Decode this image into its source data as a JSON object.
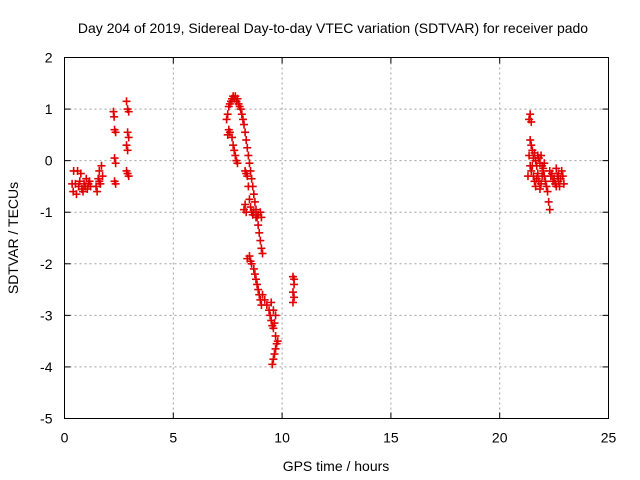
{
  "chart_data": {
    "type": "scatter",
    "title": "Day 204 of 2019, Sidereal Day-to-day VTEC variation (SDTVAR) for receiver pado",
    "xlabel": "GPS time / hours",
    "ylabel": "SDTVAR / TECUs",
    "xlim": [
      0,
      25
    ],
    "ylim": [
      -5,
      2
    ],
    "xticks": [
      "0",
      "5",
      "10",
      "15",
      "20",
      "25"
    ],
    "yticks": [
      "-5",
      "-4",
      "-3",
      "-2",
      "-1",
      "0",
      "1",
      "2"
    ],
    "grid": true,
    "marker": "+",
    "color": "#e00000",
    "series": [
      {
        "name": "SDTVAR",
        "points": [
          [
            0.35,
            -0.45
          ],
          [
            0.4,
            -0.6
          ],
          [
            0.42,
            -0.2
          ],
          [
            0.5,
            -0.45
          ],
          [
            0.55,
            -0.65
          ],
          [
            0.6,
            -0.2
          ],
          [
            0.65,
            -0.5
          ],
          [
            0.7,
            -0.4
          ],
          [
            0.75,
            -0.25
          ],
          [
            0.8,
            -0.55
          ],
          [
            0.85,
            -0.6
          ],
          [
            0.9,
            -0.45
          ],
          [
            0.95,
            -0.5
          ],
          [
            1.0,
            -0.35
          ],
          [
            1.05,
            -0.55
          ],
          [
            1.1,
            -0.45
          ],
          [
            1.15,
            -0.4
          ],
          [
            1.2,
            -0.5
          ],
          [
            1.45,
            -0.5
          ],
          [
            1.5,
            -0.6
          ],
          [
            1.55,
            -0.35
          ],
          [
            1.6,
            -0.2
          ],
          [
            1.65,
            -0.45
          ],
          [
            1.7,
            -0.1
          ],
          [
            1.75,
            -0.3
          ],
          [
            1.6,
            -0.4
          ],
          [
            2.25,
            0.95
          ],
          [
            2.3,
            0.6
          ],
          [
            2.35,
            0.55
          ],
          [
            2.28,
            0.85
          ],
          [
            2.3,
            0.05
          ],
          [
            2.35,
            -0.05
          ],
          [
            2.3,
            -0.4
          ],
          [
            2.35,
            -0.45
          ],
          [
            2.85,
            1.15
          ],
          [
            2.9,
            1.0
          ],
          [
            2.95,
            0.95
          ],
          [
            2.9,
            0.55
          ],
          [
            2.95,
            0.45
          ],
          [
            2.85,
            0.3
          ],
          [
            2.9,
            0.2
          ],
          [
            2.85,
            -0.2
          ],
          [
            2.95,
            -0.3
          ],
          [
            2.9,
            -0.25
          ],
          [
            7.45,
            0.8
          ],
          [
            7.5,
            0.9
          ],
          [
            7.55,
            1.05
          ],
          [
            7.6,
            1.1
          ],
          [
            7.65,
            1.15
          ],
          [
            7.7,
            1.2
          ],
          [
            7.75,
            1.25
          ],
          [
            7.8,
            1.2
          ],
          [
            7.85,
            1.25
          ],
          [
            7.9,
            1.15
          ],
          [
            7.95,
            1.2
          ],
          [
            8.0,
            1.1
          ],
          [
            8.05,
            1.05
          ],
          [
            8.1,
            1.0
          ],
          [
            8.15,
            0.9
          ],
          [
            8.2,
            0.8
          ],
          [
            8.25,
            0.7
          ],
          [
            8.3,
            0.55
          ],
          [
            8.35,
            0.4
          ],
          [
            8.4,
            0.25
          ],
          [
            8.45,
            0.1
          ],
          [
            8.5,
            -0.05
          ],
          [
            8.55,
            -0.2
          ],
          [
            8.6,
            -0.35
          ],
          [
            8.65,
            -0.5
          ],
          [
            8.7,
            -0.65
          ],
          [
            8.75,
            -0.8
          ],
          [
            8.8,
            -0.95
          ],
          [
            8.85,
            -1.1
          ],
          [
            8.9,
            -1.25
          ],
          [
            8.95,
            -1.4
          ],
          [
            9.0,
            -1.55
          ],
          [
            9.05,
            -1.7
          ],
          [
            9.1,
            -1.8
          ],
          [
            7.5,
            0.5
          ],
          [
            7.55,
            0.6
          ],
          [
            7.6,
            0.55
          ],
          [
            7.7,
            0.45
          ],
          [
            7.75,
            0.3
          ],
          [
            7.8,
            0.2
          ],
          [
            7.85,
            0.1
          ],
          [
            7.9,
            0.0
          ],
          [
            7.95,
            -0.05
          ],
          [
            8.3,
            -0.2
          ],
          [
            8.35,
            -0.25
          ],
          [
            8.4,
            -0.3
          ],
          [
            8.45,
            -0.5
          ],
          [
            8.5,
            -0.75
          ],
          [
            8.55,
            -0.9
          ],
          [
            8.6,
            -1.0
          ],
          [
            8.65,
            -1.05
          ],
          [
            8.7,
            -1.0
          ],
          [
            8.8,
            -1.1
          ],
          [
            8.9,
            -1.05
          ],
          [
            9.0,
            -1.0
          ],
          [
            9.05,
            -1.1
          ],
          [
            8.25,
            -0.95
          ],
          [
            8.3,
            -0.85
          ],
          [
            8.35,
            -1.0
          ],
          [
            8.4,
            -1.9
          ],
          [
            8.5,
            -1.85
          ],
          [
            8.55,
            -1.95
          ],
          [
            8.6,
            -2.0
          ],
          [
            8.7,
            -2.1
          ],
          [
            8.75,
            -2.2
          ],
          [
            8.8,
            -2.3
          ],
          [
            8.85,
            -2.4
          ],
          [
            8.9,
            -2.5
          ],
          [
            8.95,
            -2.6
          ],
          [
            9.0,
            -2.7
          ],
          [
            9.05,
            -2.8
          ],
          [
            9.1,
            -2.6
          ],
          [
            9.2,
            -2.7
          ],
          [
            9.3,
            -2.8
          ],
          [
            9.4,
            -2.9
          ],
          [
            9.45,
            -3.0
          ],
          [
            9.5,
            -3.1
          ],
          [
            9.55,
            -3.2
          ],
          [
            9.6,
            -3.25
          ],
          [
            9.65,
            -3.15
          ],
          [
            9.7,
            -3.0
          ],
          [
            9.6,
            -2.9
          ],
          [
            9.5,
            -2.75
          ],
          [
            9.55,
            -3.95
          ],
          [
            9.6,
            -3.85
          ],
          [
            9.65,
            -3.75
          ],
          [
            9.7,
            -3.65
          ],
          [
            9.75,
            -3.55
          ],
          [
            9.8,
            -3.5
          ],
          [
            9.7,
            -3.4
          ],
          [
            10.5,
            -2.25
          ],
          [
            10.55,
            -2.4
          ],
          [
            10.5,
            -2.55
          ],
          [
            10.55,
            -2.65
          ],
          [
            10.5,
            -2.75
          ],
          [
            10.55,
            -2.3
          ],
          [
            21.35,
            0.8
          ],
          [
            21.4,
            0.9
          ],
          [
            21.45,
            0.75
          ],
          [
            21.4,
            0.4
          ],
          [
            21.45,
            0.3
          ],
          [
            21.5,
            0.2
          ],
          [
            21.35,
            0.1
          ],
          [
            21.4,
            -0.1
          ],
          [
            21.3,
            -0.3
          ],
          [
            21.45,
            -0.2
          ],
          [
            21.5,
            -0.1
          ],
          [
            21.55,
            0.05
          ],
          [
            21.6,
            0.15
          ],
          [
            21.65,
            0.0
          ],
          [
            21.7,
            -0.1
          ],
          [
            21.75,
            0.1
          ],
          [
            21.8,
            0.05
          ],
          [
            21.85,
            -0.05
          ],
          [
            21.9,
            0.1
          ],
          [
            21.95,
            -0.1
          ],
          [
            22.0,
            -0.2
          ],
          [
            22.05,
            -0.3
          ],
          [
            22.1,
            -0.4
          ],
          [
            22.15,
            -0.5
          ],
          [
            22.2,
            -0.6
          ],
          [
            22.25,
            -0.8
          ],
          [
            22.3,
            -0.95
          ],
          [
            21.55,
            -0.3
          ],
          [
            21.6,
            -0.4
          ],
          [
            21.65,
            -0.5
          ],
          [
            21.7,
            -0.35
          ],
          [
            21.75,
            -0.25
          ],
          [
            21.8,
            -0.4
          ],
          [
            21.85,
            -0.55
          ],
          [
            21.9,
            -0.45
          ],
          [
            21.95,
            -0.3
          ],
          [
            22.0,
            -0.15
          ],
          [
            22.05,
            -0.05
          ],
          [
            22.3,
            -0.2
          ],
          [
            22.35,
            -0.3
          ],
          [
            22.4,
            -0.25
          ],
          [
            22.45,
            -0.4
          ],
          [
            22.5,
            -0.35
          ],
          [
            22.55,
            -0.45
          ],
          [
            22.6,
            -0.5
          ],
          [
            22.65,
            -0.3
          ],
          [
            22.7,
            -0.4
          ],
          [
            22.75,
            -0.5
          ],
          [
            22.8,
            -0.35
          ],
          [
            22.85,
            -0.2
          ],
          [
            22.9,
            -0.3
          ],
          [
            22.95,
            -0.45
          ],
          [
            22.6,
            -0.15
          ],
          [
            22.7,
            -0.25
          ]
        ]
      }
    ]
  }
}
